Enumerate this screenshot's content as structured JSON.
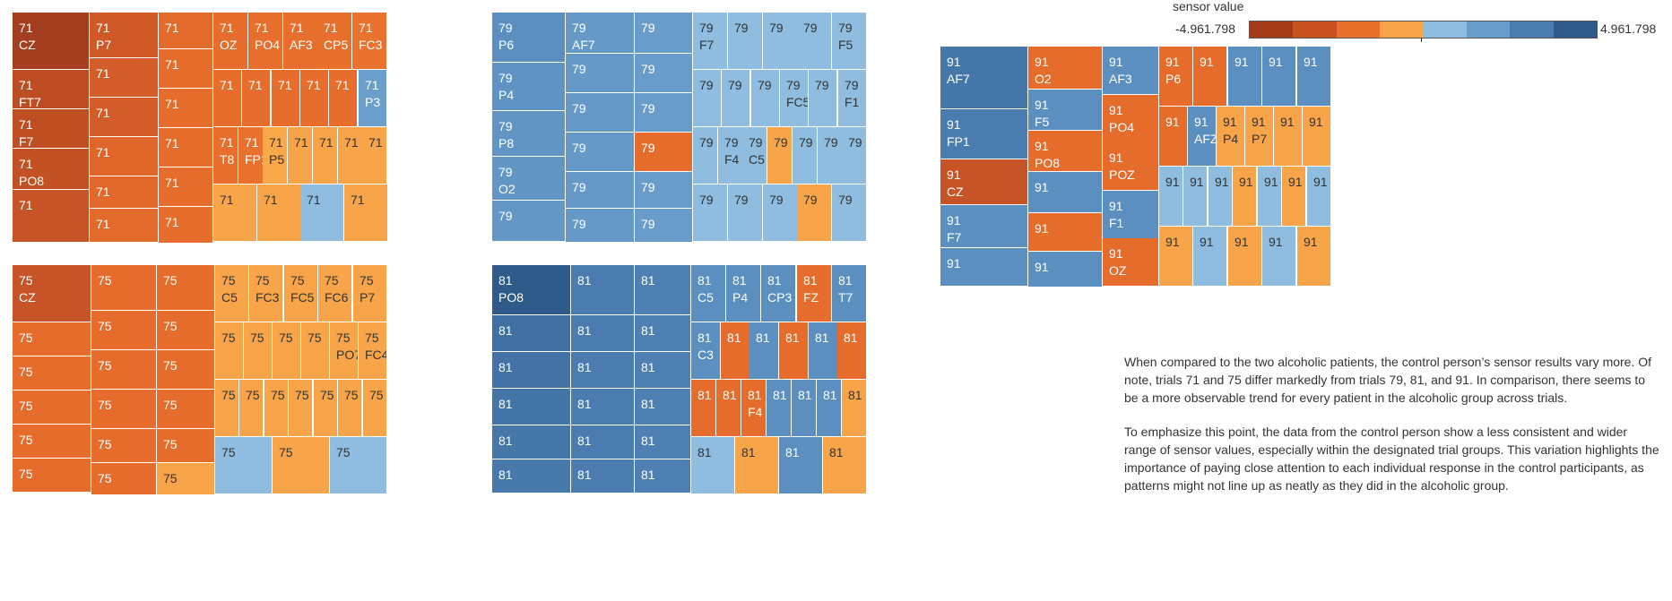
{
  "legend": {
    "title": "sensor value",
    "min_label": "-4.961.798",
    "max_label": "4.961.798",
    "colors": [
      "#a33a18",
      "#c8521f",
      "#e8702a",
      "#f8a54a",
      "#8ebde0",
      "#689cc9",
      "#4a7cb0",
      "#2f5a89"
    ]
  },
  "notes": {
    "p1": "When compared to the two alcoholic patients, the control person’s sensor results vary more. Of note, trials 71 and 75 differ markedly from trials 79, 81, and 91. In comparison, there seems to be a more observable trend for every patient in the alcoholic group across trials.",
    "p2": "To emphasize this point, the data from the control person show a less consistent and wider range of sensor values, especially within the designated trial groups. This variation highlights the importance of paying close attention to each individual response in the control participants, as patterns might not line up as neatly as they did in the alcoholic group."
  },
  "chart_data": [
    {
      "type": "treemap",
      "trial": "71",
      "cells": [
        {
          "label": "71\nCZ",
          "color": "#a43e1e"
        },
        {
          "label": "71\nFT7",
          "color": "#bd4d22"
        },
        {
          "label": "71\nF7",
          "color": "#bf4f23"
        },
        {
          "label": "71\nPO8",
          "color": "#c25124"
        },
        {
          "label": "71",
          "color": "#c75426"
        },
        {
          "label": "71\nP7",
          "color": "#cf5a27"
        },
        {
          "label": "71",
          "color": "#d35d28"
        },
        {
          "label": "71",
          "color": "#d35d28"
        },
        {
          "label": "71",
          "color": "#df6529"
        },
        {
          "label": "71",
          "color": "#e1672a"
        },
        {
          "label": "71",
          "color": "#e26a2b"
        },
        {
          "label": "71",
          "color": "#e26a2b"
        },
        {
          "label": "71",
          "color": "#e56c2b"
        },
        {
          "label": "71",
          "color": "#e56c2b"
        },
        {
          "label": "71",
          "color": "#e56c2b"
        },
        {
          "label": "71",
          "color": "#e56c2b"
        },
        {
          "label": "71",
          "color": "#e66d2c"
        },
        {
          "label": "71\nOZ",
          "color": "#e66d2c"
        },
        {
          "label": "71\nPO4",
          "color": "#e76e2c"
        },
        {
          "label": "71\nAF3",
          "color": "#e76e2c"
        },
        {
          "label": "71\nCP5",
          "color": "#e7702d"
        },
        {
          "label": "71\nFC3",
          "color": "#e8722e"
        },
        {
          "label": "71",
          "color": "#e66d2c"
        },
        {
          "label": "71",
          "color": "#e66d2c"
        },
        {
          "label": "71",
          "color": "#e66d2c"
        },
        {
          "label": "71",
          "color": "#e66d2c"
        },
        {
          "label": "71",
          "color": "#e66d2c"
        },
        {
          "label": "71\nP3",
          "color": "#6a9fcb"
        },
        {
          "label": "71\nT8",
          "color": "#e76e2c"
        },
        {
          "label": "71\nFP1",
          "color": "#e8712d"
        },
        {
          "label": "71\nP5",
          "color": "#f9a84a"
        },
        {
          "label": "71",
          "color": "#f8a449"
        },
        {
          "label": "71",
          "color": "#f8a449"
        },
        {
          "label": "71",
          "color": "#f8a449"
        },
        {
          "label": "71",
          "color": "#f8a449"
        },
        {
          "label": "71",
          "color": "#f8a449"
        },
        {
          "label": "71",
          "color": "#f8a449"
        },
        {
          "label": "71",
          "color": "#8ebde0"
        },
        {
          "label": "71",
          "color": "#f8a449"
        }
      ]
    },
    {
      "type": "treemap",
      "trial": "75",
      "cells": [
        {
          "label": "75\nCZ",
          "color": "#c75426"
        },
        {
          "label": "75",
          "color": "#e56c2b"
        },
        {
          "label": "75",
          "color": "#e56c2b"
        },
        {
          "label": "75",
          "color": "#e56c2b"
        },
        {
          "label": "75",
          "color": "#e56c2b"
        },
        {
          "label": "75",
          "color": "#e56c2b"
        },
        {
          "label": "75",
          "color": "#e56c2b"
        },
        {
          "label": "75",
          "color": "#e56c2b"
        },
        {
          "label": "75",
          "color": "#e56c2b"
        },
        {
          "label": "75",
          "color": "#e56c2b"
        },
        {
          "label": "75",
          "color": "#e56c2b"
        },
        {
          "label": "75",
          "color": "#e56c2b"
        },
        {
          "label": "75",
          "color": "#e56c2b"
        },
        {
          "label": "75",
          "color": "#e56c2b"
        },
        {
          "label": "75",
          "color": "#e56c2b"
        },
        {
          "label": "75",
          "color": "#e56c2b"
        },
        {
          "label": "75",
          "color": "#e56c2b"
        },
        {
          "label": "75",
          "color": "#f8a449"
        },
        {
          "label": "75\nC5",
          "color": "#f8a449"
        },
        {
          "label": "75\nFC3",
          "color": "#f8a449"
        },
        {
          "label": "75\nFC5",
          "color": "#f8a449"
        },
        {
          "label": "75\nFC6",
          "color": "#f8a449"
        },
        {
          "label": "75\nP7",
          "color": "#f8a449"
        },
        {
          "label": "75",
          "color": "#f8a449"
        },
        {
          "label": "75",
          "color": "#f8a449"
        },
        {
          "label": "75",
          "color": "#f8a449"
        },
        {
          "label": "75",
          "color": "#f8a449"
        },
        {
          "label": "75\nPO7",
          "color": "#f8a449"
        },
        {
          "label": "75\nFC4",
          "color": "#f8a449"
        },
        {
          "label": "75",
          "color": "#f8a449"
        },
        {
          "label": "75",
          "color": "#f8a449"
        },
        {
          "label": "75",
          "color": "#f8a449"
        },
        {
          "label": "75",
          "color": "#f8a449"
        },
        {
          "label": "75",
          "color": "#f8a449"
        },
        {
          "label": "75",
          "color": "#f8a449"
        },
        {
          "label": "75",
          "color": "#f8a449"
        },
        {
          "label": "75",
          "color": "#8ebde0"
        },
        {
          "label": "75",
          "color": "#f8a449"
        },
        {
          "label": "75",
          "color": "#8ebde0"
        }
      ]
    },
    {
      "type": "treemap",
      "trial": "79",
      "cells": [
        {
          "label": "79\nP6",
          "color": "#5a8fc0"
        },
        {
          "label": "79\nP4",
          "color": "#5e93c3"
        },
        {
          "label": "79\nP8",
          "color": "#6195c4"
        },
        {
          "label": "79\nO2",
          "color": "#6296c5"
        },
        {
          "label": "79",
          "color": "#6397c6"
        },
        {
          "label": "79\nAF7",
          "color": "#6699c7"
        },
        {
          "label": "79",
          "color": "#6699c7"
        },
        {
          "label": "79",
          "color": "#6699c7"
        },
        {
          "label": "79",
          "color": "#6699c7"
        },
        {
          "label": "79",
          "color": "#6699c7"
        },
        {
          "label": "79",
          "color": "#6699c7"
        },
        {
          "label": "79",
          "color": "#6a9cc9"
        },
        {
          "label": "79",
          "color": "#6a9cc9"
        },
        {
          "label": "79",
          "color": "#6a9cc9"
        },
        {
          "label": "79",
          "color": "#e56c2b"
        },
        {
          "label": "79",
          "color": "#6a9cc9"
        },
        {
          "label": "79",
          "color": "#6a9cc9"
        },
        {
          "label": "79\nF7",
          "color": "#8ebde0"
        },
        {
          "label": "79",
          "color": "#8ebde0"
        },
        {
          "label": "79",
          "color": "#8ebde0"
        },
        {
          "label": "79",
          "color": "#8ebde0"
        },
        {
          "label": "79\nF5",
          "color": "#8ebde0"
        },
        {
          "label": "79",
          "color": "#8ebde0"
        },
        {
          "label": "79",
          "color": "#8ebde0"
        },
        {
          "label": "79",
          "color": "#8ebde0"
        },
        {
          "label": "79\nFC5",
          "color": "#8ebde0"
        },
        {
          "label": "79",
          "color": "#8ebde0"
        },
        {
          "label": "79\nF1",
          "color": "#8ebde0"
        },
        {
          "label": "79",
          "color": "#8ebde0"
        },
        {
          "label": "79\nF4",
          "color": "#8ebde0"
        },
        {
          "label": "79\nC5",
          "color": "#8ebde0"
        },
        {
          "label": "79",
          "color": "#f8a449"
        },
        {
          "label": "79",
          "color": "#8ebde0"
        },
        {
          "label": "79",
          "color": "#8ebde0"
        },
        {
          "label": "79",
          "color": "#8ebde0"
        },
        {
          "label": "79",
          "color": "#8ebde0"
        },
        {
          "label": "79",
          "color": "#8ebde0"
        },
        {
          "label": "79",
          "color": "#8ebde0"
        },
        {
          "label": "79",
          "color": "#f8a449"
        },
        {
          "label": "79",
          "color": "#8ebde0"
        }
      ]
    },
    {
      "type": "treemap",
      "trial": "81",
      "cells": [
        {
          "label": "81\nPO8",
          "color": "#2f5b8a"
        },
        {
          "label": "81",
          "color": "#3f6fa3"
        },
        {
          "label": "81",
          "color": "#4272a6"
        },
        {
          "label": "81",
          "color": "#4475a8"
        },
        {
          "label": "81",
          "color": "#4677a9"
        },
        {
          "label": "81",
          "color": "#4879ab"
        },
        {
          "label": "81",
          "color": "#4a7cb0"
        },
        {
          "label": "81",
          "color": "#4a7cb0"
        },
        {
          "label": "81",
          "color": "#4a7cb0"
        },
        {
          "label": "81",
          "color": "#4a7cb0"
        },
        {
          "label": "81",
          "color": "#4a7cb0"
        },
        {
          "label": "81",
          "color": "#4a7cb0"
        },
        {
          "label": "81",
          "color": "#4f80b3"
        },
        {
          "label": "81",
          "color": "#4f80b3"
        },
        {
          "label": "81",
          "color": "#4f80b3"
        },
        {
          "label": "81",
          "color": "#4f80b3"
        },
        {
          "label": "81",
          "color": "#4f80b3"
        },
        {
          "label": "81",
          "color": "#4f80b3"
        },
        {
          "label": "81\nC5",
          "color": "#5b8fc0"
        },
        {
          "label": "81\nP4",
          "color": "#5b8fc0"
        },
        {
          "label": "81\nCP3",
          "color": "#5b8fc0"
        },
        {
          "label": "81\nFZ",
          "color": "#e56c2b"
        },
        {
          "label": "81\nT7",
          "color": "#5b8fc0"
        },
        {
          "label": "81\nC3",
          "color": "#5b8fc0"
        },
        {
          "label": "81",
          "color": "#e56c2b"
        },
        {
          "label": "81",
          "color": "#5b8fc0"
        },
        {
          "label": "81",
          "color": "#e56c2b"
        },
        {
          "label": "81",
          "color": "#5b8fc0"
        },
        {
          "label": "81",
          "color": "#e56c2b"
        },
        {
          "label": "81",
          "color": "#e56c2b"
        },
        {
          "label": "81",
          "color": "#e56c2b"
        },
        {
          "label": "81\nF4",
          "color": "#e56c2b"
        },
        {
          "label": "81",
          "color": "#5b8fc0"
        },
        {
          "label": "81",
          "color": "#5b8fc0"
        },
        {
          "label": "81",
          "color": "#5b8fc0"
        },
        {
          "label": "81",
          "color": "#f8a449"
        },
        {
          "label": "81",
          "color": "#8ebde0"
        },
        {
          "label": "81",
          "color": "#f8a449"
        },
        {
          "label": "81",
          "color": "#5b8fc0"
        },
        {
          "label": "81",
          "color": "#f8a449"
        }
      ]
    },
    {
      "type": "treemap",
      "trial": "91",
      "cells": [
        {
          "label": "91\nAF7",
          "color": "#4677a9"
        },
        {
          "label": "91\nFP1",
          "color": "#4a7cb0"
        },
        {
          "label": "91\nCZ",
          "color": "#c75426"
        },
        {
          "label": "91\nF7",
          "color": "#5b8fc0"
        },
        {
          "label": "91",
          "color": "#5b8fc0"
        },
        {
          "label": "91\nO2",
          "color": "#e56c2b"
        },
        {
          "label": "91\nF5",
          "color": "#5b8fc0"
        },
        {
          "label": "91\nPO8",
          "color": "#e56c2b"
        },
        {
          "label": "91",
          "color": "#5b8fc0"
        },
        {
          "label": "91",
          "color": "#e56c2b"
        },
        {
          "label": "91",
          "color": "#5b8fc0"
        },
        {
          "label": "91\nAF3",
          "color": "#5b8fc0"
        },
        {
          "label": "91\nPO4",
          "color": "#e56c2b"
        },
        {
          "label": "91\nPOZ",
          "color": "#e56c2b"
        },
        {
          "label": "91\nF1",
          "color": "#5b8fc0"
        },
        {
          "label": "91\nOZ",
          "color": "#e56c2b"
        },
        {
          "label": "91\nP6",
          "color": "#e56c2b"
        },
        {
          "label": "91",
          "color": "#e56c2b"
        },
        {
          "label": "91",
          "color": "#5b8fc0"
        },
        {
          "label": "91",
          "color": "#5b8fc0"
        },
        {
          "label": "91",
          "color": "#5b8fc0"
        },
        {
          "label": "91",
          "color": "#e56c2b"
        },
        {
          "label": "91\nAFZ",
          "color": "#5b8fc0"
        },
        {
          "label": "91\nP4",
          "color": "#f8a449"
        },
        {
          "label": "91\nP7",
          "color": "#f8a449"
        },
        {
          "label": "91",
          "color": "#f8a449"
        },
        {
          "label": "91",
          "color": "#f8a449"
        },
        {
          "label": "91",
          "color": "#8ebde0"
        },
        {
          "label": "91",
          "color": "#8ebde0"
        },
        {
          "label": "91",
          "color": "#8ebde0"
        },
        {
          "label": "91",
          "color": "#f8a449"
        },
        {
          "label": "91",
          "color": "#8ebde0"
        },
        {
          "label": "91",
          "color": "#f8a449"
        },
        {
          "label": "91",
          "color": "#8ebde0"
        },
        {
          "label": "91",
          "color": "#f8a449"
        },
        {
          "label": "91",
          "color": "#8ebde0"
        },
        {
          "label": "91",
          "color": "#f8a449"
        },
        {
          "label": "91",
          "color": "#8ebde0"
        },
        {
          "label": "91",
          "color": "#f8a449"
        }
      ]
    }
  ]
}
